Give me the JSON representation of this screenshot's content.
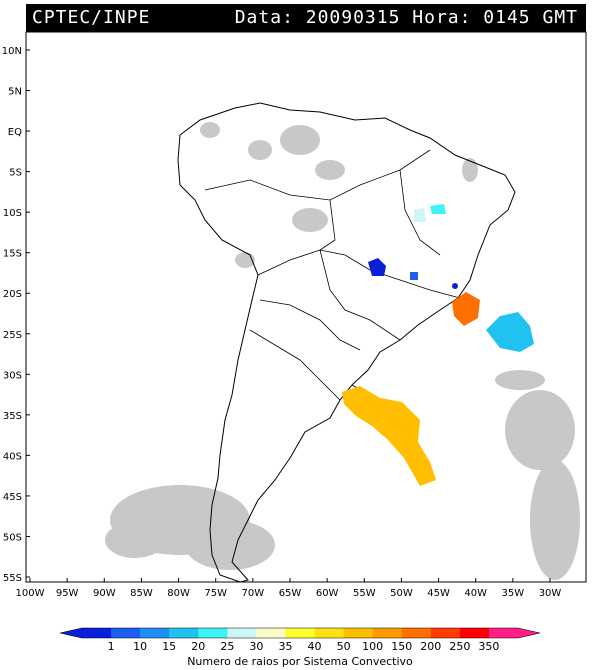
{
  "header": {
    "agency": "CPTEC/INPE",
    "datetime": "Data: 20090315 Hora: 0145 GMT"
  },
  "map": {
    "lat_labels": [
      "10N",
      "5N",
      "EQ",
      "5S",
      "10S",
      "15S",
      "20S",
      "25S",
      "30S",
      "35S",
      "40S",
      "45S",
      "50S",
      "55S"
    ],
    "lon_labels": [
      "100W",
      "95W",
      "90W",
      "85W",
      "80W",
      "75W",
      "70W",
      "65W",
      "60W",
      "55W",
      "50W",
      "45W",
      "40W",
      "35W",
      "30W"
    ]
  },
  "colorbar": {
    "ticks": [
      "1",
      "10",
      "15",
      "20",
      "25",
      "30",
      "35",
      "40",
      "50",
      "100",
      "150",
      "200",
      "250",
      "350"
    ],
    "colors": [
      "#0a1fd8",
      "#1c5ff0",
      "#1f8ff5",
      "#21c2f2",
      "#3df3f3",
      "#cdf7f7",
      "#fbfbc5",
      "#ffff30",
      "#ffe010",
      "#ffbf00",
      "#ff9a00",
      "#ff6e00",
      "#ff3b00",
      "#ff0000",
      "#ff1f84"
    ],
    "label": "Numero de raios por Sistema Convectivo"
  }
}
